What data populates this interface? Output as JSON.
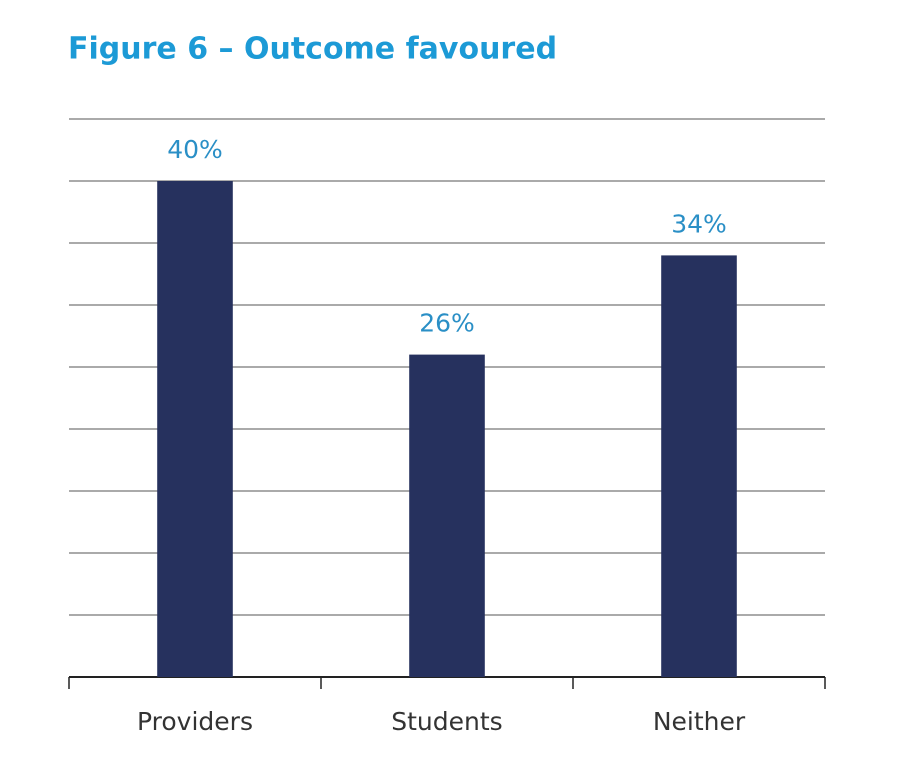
{
  "chart_data": {
    "type": "bar",
    "title": "Figure 6 – Outcome favoured",
    "categories": [
      "Providers",
      "Students",
      "Neither"
    ],
    "values": [
      40,
      26,
      34
    ],
    "value_labels": [
      "40%",
      "26%",
      "34%"
    ],
    "color": "#26315e",
    "ylim": [
      0,
      45
    ],
    "yticks": [
      0,
      5,
      10,
      15,
      20,
      25,
      30,
      35,
      40,
      45
    ],
    "grid": true
  }
}
